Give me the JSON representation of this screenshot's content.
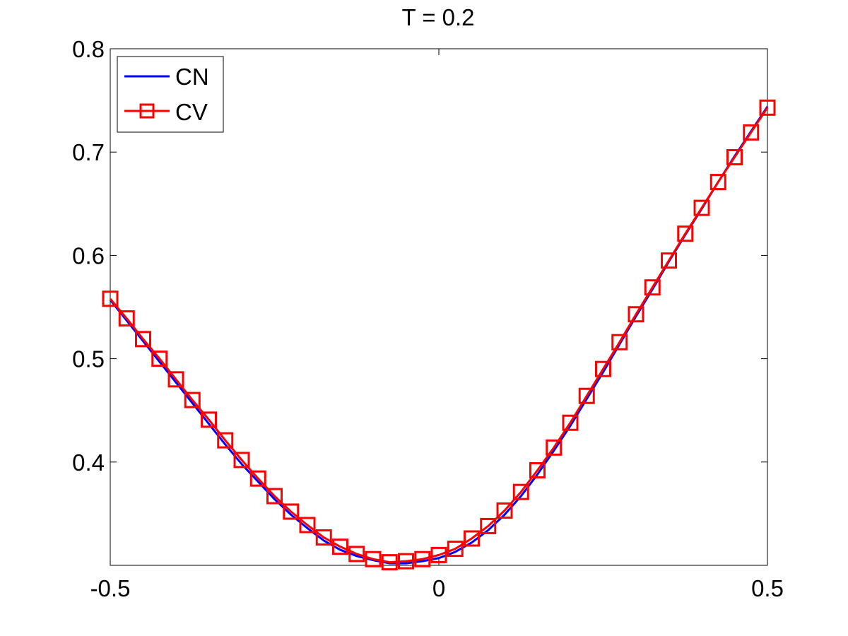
{
  "chart_data": {
    "type": "line",
    "title": "T = 0.2",
    "xlabel": "",
    "ylabel": "",
    "xlim": [
      -0.5,
      0.5
    ],
    "ylim": [
      0.3,
      0.8
    ],
    "xticks": [
      -0.5,
      0,
      0.5
    ],
    "xtick_labels": [
      "-0.5",
      "0",
      "0.5"
    ],
    "yticks": [
      0.4,
      0.5,
      0.6,
      0.7,
      0.8
    ],
    "ytick_labels": [
      "0.4",
      "0.5",
      "0.6",
      "0.7",
      "0.8"
    ],
    "grid": false,
    "legend_position": "top-left",
    "x": [
      -0.5,
      -0.475,
      -0.45,
      -0.425,
      -0.4,
      -0.375,
      -0.35,
      -0.325,
      -0.3,
      -0.275,
      -0.25,
      -0.225,
      -0.2,
      -0.175,
      -0.15,
      -0.125,
      -0.1,
      -0.075,
      -0.05,
      -0.025,
      0,
      0.025,
      0.05,
      0.075,
      0.1,
      0.125,
      0.15,
      0.175,
      0.2,
      0.225,
      0.25,
      0.275,
      0.3,
      0.325,
      0.35,
      0.375,
      0.4,
      0.425,
      0.45,
      0.475,
      0.5
    ],
    "series": [
      {
        "name": "CN",
        "color": "#0000ff",
        "marker": "none",
        "values": [
          0.557,
          0.537,
          0.517,
          0.497,
          0.477,
          0.457,
          0.437,
          0.417,
          0.398,
          0.381,
          0.364,
          0.349,
          0.336,
          0.324,
          0.315,
          0.309,
          0.305,
          0.302,
          0.302,
          0.304,
          0.307,
          0.313,
          0.322,
          0.334,
          0.349,
          0.367,
          0.388,
          0.411,
          0.435,
          0.461,
          0.487,
          0.514,
          0.541,
          0.567,
          0.594,
          0.62,
          0.645,
          0.671,
          0.696,
          0.72,
          0.744
        ]
      },
      {
        "name": "CV",
        "color": "#ff0000",
        "marker": "square",
        "values": [
          0.558,
          0.539,
          0.519,
          0.5,
          0.48,
          0.46,
          0.441,
          0.421,
          0.402,
          0.384,
          0.367,
          0.352,
          0.339,
          0.327,
          0.318,
          0.311,
          0.306,
          0.303,
          0.304,
          0.306,
          0.31,
          0.316,
          0.326,
          0.338,
          0.353,
          0.371,
          0.392,
          0.414,
          0.438,
          0.464,
          0.49,
          0.516,
          0.543,
          0.569,
          0.595,
          0.621,
          0.646,
          0.671,
          0.695,
          0.719,
          0.743
        ]
      }
    ]
  }
}
